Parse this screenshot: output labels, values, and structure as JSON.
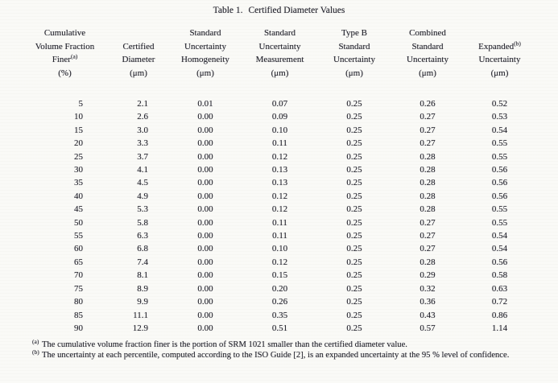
{
  "caption": {
    "label": "Table 1.",
    "text": "Certified Diameter Values"
  },
  "table": {
    "columns": [
      {
        "id": "cumulative-volume-fraction-finer",
        "header_lines": [
          "Cumulative",
          "Volume Fraction",
          "Finer"
        ],
        "sup": "(a)",
        "sup_line": 2,
        "unit": "(%)"
      },
      {
        "id": "certified-diameter",
        "header_lines": [
          "Certified",
          "Diameter"
        ],
        "sup": null,
        "sup_line": null,
        "unit": "(μm)"
      },
      {
        "id": "standard-uncertainty-homogeneity",
        "header_lines": [
          "Standard",
          "Uncertainty",
          "Homogeneity"
        ],
        "sup": null,
        "sup_line": null,
        "unit": "(μm)"
      },
      {
        "id": "standard-uncertainty-measurement",
        "header_lines": [
          "Standard",
          "Uncertainty",
          "Measurement"
        ],
        "sup": null,
        "sup_line": null,
        "unit": "(μm)"
      },
      {
        "id": "type-b-standard-uncertainty",
        "header_lines": [
          "Type B",
          "Standard",
          "Uncertainty"
        ],
        "sup": null,
        "sup_line": null,
        "unit": "(μm)"
      },
      {
        "id": "combined-standard-uncertainty",
        "header_lines": [
          "Combined",
          "Standard",
          "Uncertainty"
        ],
        "sup": null,
        "sup_line": null,
        "unit": "(μm)"
      },
      {
        "id": "expanded-uncertainty",
        "header_lines": [
          "Expanded",
          "Uncertainty"
        ],
        "sup": "(b)",
        "sup_line": 0,
        "unit": "(μm)"
      }
    ],
    "rows": [
      [
        "5",
        "2.1",
        "0.01",
        "0.07",
        "0.25",
        "0.26",
        "0.52"
      ],
      [
        "10",
        "2.6",
        "0.00",
        "0.09",
        "0.25",
        "0.27",
        "0.53"
      ],
      [
        "15",
        "3.0",
        "0.00",
        "0.10",
        "0.25",
        "0.27",
        "0.54"
      ],
      [
        "20",
        "3.3",
        "0.00",
        "0.11",
        "0.25",
        "0.27",
        "0.55"
      ],
      [
        "25",
        "3.7",
        "0.00",
        "0.12",
        "0.25",
        "0.28",
        "0.55"
      ],
      [
        "30",
        "4.1",
        "0.00",
        "0.13",
        "0.25",
        "0.28",
        "0.56"
      ],
      [
        "35",
        "4.5",
        "0.00",
        "0.13",
        "0.25",
        "0.28",
        "0.56"
      ],
      [
        "40",
        "4.9",
        "0.00",
        "0.12",
        "0.25",
        "0.28",
        "0.56"
      ],
      [
        "45",
        "5.3",
        "0.00",
        "0.12",
        "0.25",
        "0.28",
        "0.55"
      ],
      [
        "50",
        "5.8",
        "0.00",
        "0.11",
        "0.25",
        "0.27",
        "0.55"
      ],
      [
        "55",
        "6.3",
        "0.00",
        "0.11",
        "0.25",
        "0.27",
        "0.54"
      ],
      [
        "60",
        "6.8",
        "0.00",
        "0.10",
        "0.25",
        "0.27",
        "0.54"
      ],
      [
        "65",
        "7.4",
        "0.00",
        "0.12",
        "0.25",
        "0.28",
        "0.56"
      ],
      [
        "70",
        "8.1",
        "0.00",
        "0.15",
        "0.25",
        "0.29",
        "0.58"
      ],
      [
        "75",
        "8.9",
        "0.00",
        "0.20",
        "0.25",
        "0.32",
        "0.63"
      ],
      [
        "80",
        "9.9",
        "0.00",
        "0.26",
        "0.25",
        "0.36",
        "0.72"
      ],
      [
        "85",
        "11.1",
        "0.00",
        "0.35",
        "0.25",
        "0.43",
        "0.86"
      ],
      [
        "90",
        "12.9",
        "0.00",
        "0.51",
        "0.25",
        "0.57",
        "1.14"
      ]
    ]
  },
  "footnotes": [
    {
      "marker": "(a)",
      "text": "The cumulative volume fraction finer is the portion of SRM 1021 smaller than the certified diameter value."
    },
    {
      "marker": "(b)",
      "text": "The uncertainty at each percentile, computed according to the ISO Guide [2], is an expanded uncertainty at the 95 % level of confidence."
    }
  ],
  "colors": {
    "background": "#fafaf7",
    "text": "#26262e"
  }
}
